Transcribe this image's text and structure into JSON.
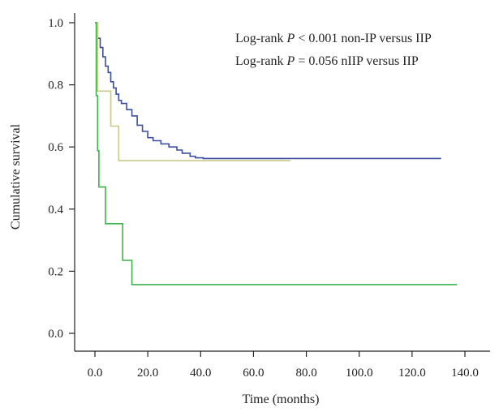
{
  "chart_data": {
    "type": "line",
    "step": true,
    "xlabel": "Time (months)",
    "ylabel": "Cumulative survival",
    "xlim": [
      0,
      140
    ],
    "ylim": [
      0,
      1.0
    ],
    "x_ticks": [
      "0.0",
      "20.0",
      "40.0",
      "60.0",
      "80.0",
      "100.0",
      "120.0",
      "140.0"
    ],
    "y_ticks": [
      "0.0",
      "0.2",
      "0.4",
      "0.6",
      "0.8",
      "1.0"
    ],
    "x_tick_values": [
      0,
      20,
      40,
      60,
      80,
      100,
      120,
      140
    ],
    "y_tick_values": [
      0,
      0.2,
      0.4,
      0.6,
      0.8,
      1.0
    ],
    "annotations": [
      {
        "prefix": "Log-rank ",
        "italic": "P",
        "suffix": " < 0.001 non-IP versus IIP"
      },
      {
        "prefix": "Log-rank ",
        "italic": "P",
        "suffix": " = 0.056 nIIP versus IIP"
      }
    ],
    "series": [
      {
        "color": "#3b4fa0",
        "points": [
          [
            0,
            1.0
          ],
          [
            1,
            0.95
          ],
          [
            2,
            0.92
          ],
          [
            3,
            0.89
          ],
          [
            4,
            0.86
          ],
          [
            5,
            0.84
          ],
          [
            6,
            0.81
          ],
          [
            7,
            0.79
          ],
          [
            8,
            0.77
          ],
          [
            9,
            0.75
          ],
          [
            10,
            0.74
          ],
          [
            12,
            0.72
          ],
          [
            14,
            0.7
          ],
          [
            16,
            0.67
          ],
          [
            18,
            0.65
          ],
          [
            20,
            0.63
          ],
          [
            22,
            0.62
          ],
          [
            25,
            0.61
          ],
          [
            28,
            0.6
          ],
          [
            31,
            0.59
          ],
          [
            33,
            0.58
          ],
          [
            36,
            0.57
          ],
          [
            38,
            0.565
          ],
          [
            41,
            0.563
          ],
          [
            60,
            0.563
          ],
          [
            90,
            0.563
          ],
          [
            131,
            0.563
          ]
        ]
      },
      {
        "color": "#c9c98a",
        "points": [
          [
            0,
            1.0
          ],
          [
            1,
            0.78
          ],
          [
            6,
            0.78
          ],
          [
            6,
            0.667
          ],
          [
            9,
            0.667
          ],
          [
            9,
            0.556
          ],
          [
            74,
            0.556
          ]
        ]
      },
      {
        "color": "#3cb34a",
        "points": [
          [
            0,
            1.0
          ],
          [
            0.5,
            0.765
          ],
          [
            1,
            0.588
          ],
          [
            1.5,
            0.471
          ],
          [
            4,
            0.471
          ],
          [
            4,
            0.353
          ],
          [
            10.5,
            0.353
          ],
          [
            10.5,
            0.235
          ],
          [
            14,
            0.235
          ],
          [
            14,
            0.157
          ],
          [
            137,
            0.157
          ]
        ]
      }
    ]
  }
}
